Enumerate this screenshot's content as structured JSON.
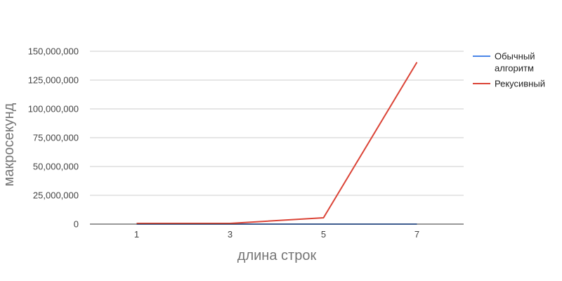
{
  "chart_data": {
    "type": "line",
    "x": [
      1,
      3,
      5,
      7
    ],
    "xlabel": "длина строк",
    "ylabel": "макросекунд",
    "ylim": [
      0,
      150000000
    ],
    "yticks": [
      0,
      25000000,
      50000000,
      75000000,
      100000000,
      125000000,
      150000000
    ],
    "ytick_labels": [
      "0",
      "25,000,000",
      "50,000,000",
      "75,000,000",
      "100,000,000",
      "125,000,000",
      "150,000,000"
    ],
    "xtick_labels": [
      "1",
      "3",
      "5",
      "7"
    ],
    "grid": true,
    "legend_position": "right",
    "series": [
      {
        "name": "Обычный алгоритм",
        "name_lines": [
          "Обычный",
          "алгоритм"
        ],
        "color": "#4a86e8",
        "values": [
          0,
          0,
          0,
          0
        ]
      },
      {
        "name": "Рекусивный",
        "name_lines": [
          "Рекусивный"
        ],
        "color": "#db4437",
        "values": [
          600000,
          600000,
          5500000,
          140500000
        ]
      }
    ]
  }
}
